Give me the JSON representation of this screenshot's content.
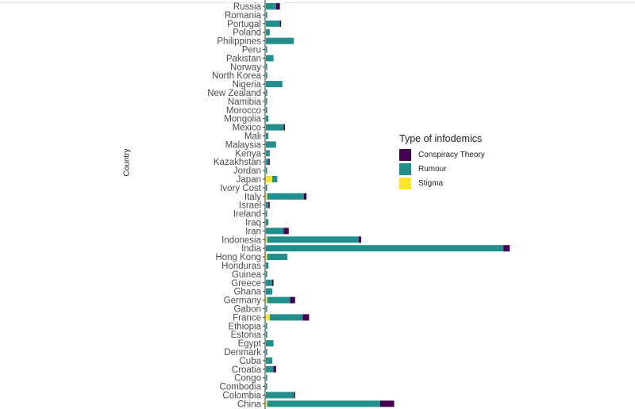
{
  "chart_data": {
    "type": "bar",
    "orientation": "horizontal",
    "stacked": true,
    "ylabel": "Country",
    "xlabel": "",
    "legend_title": "Type of infodemics",
    "legend_position": "right",
    "colors": {
      "Conspiracy Theory": "#440154",
      "Rumour": "#21908C",
      "Stigma": "#FDE725"
    },
    "categories": [
      "Russia",
      "Romania",
      "Portugal",
      "Poland",
      "Philippines",
      "Peru",
      "Pakistan",
      "Norway",
      "North Korea",
      "Nigeria",
      "New Zealand",
      "Namibia",
      "Morocco",
      "Mongolia",
      "Mexico",
      "Mali",
      "Malaysia",
      "Kenya",
      "Kazakhstan",
      "Jordan",
      "Japan",
      "Ivory Cost",
      "Italy",
      "Israel",
      "Ireland",
      "Iraq",
      "Iran",
      "Indonesia",
      "India",
      "Hong Kong",
      "Honduras",
      "Guinea",
      "Greece",
      "Ghana",
      "Germany",
      "Gabon",
      "France",
      "Ethiopia",
      "Estonia",
      "Egypt",
      "Denmark",
      "Cuba",
      "Croatia",
      "Congo",
      "Combodia",
      "Colombia",
      "China"
    ],
    "series": [
      {
        "name": "Stigma",
        "values": [
          0,
          0,
          0,
          0,
          0,
          0,
          0,
          0,
          0,
          0,
          0,
          0,
          0,
          0,
          0,
          0,
          0,
          0,
          0,
          0,
          5,
          0,
          1,
          0,
          0,
          0,
          0,
          1,
          0,
          1,
          0,
          0,
          0,
          0,
          1,
          0,
          3,
          0,
          0,
          0,
          0,
          0,
          0,
          0,
          0,
          0,
          1
        ]
      },
      {
        "name": "Rumour",
        "values": [
          8,
          1,
          11,
          3,
          22,
          1,
          6,
          1,
          1,
          13,
          1,
          1,
          1,
          2,
          14,
          2,
          8,
          3,
          2,
          1,
          4,
          1,
          29,
          2,
          1,
          2,
          14,
          72,
          187,
          16,
          2,
          1,
          5,
          5,
          18,
          1,
          26,
          1,
          1,
          6,
          1,
          5,
          6,
          1,
          1,
          22,
          89
        ]
      },
      {
        "name": "Conspiracy Theory",
        "values": [
          3,
          0,
          1,
          0,
          0,
          0,
          0,
          0,
          0,
          0,
          0,
          0,
          0,
          0,
          1,
          0,
          0,
          0,
          1,
          0,
          0,
          0,
          2,
          1,
          0,
          0,
          4,
          2,
          5,
          0,
          0,
          0,
          1,
          0,
          4,
          0,
          5,
          0,
          0,
          0,
          0,
          0,
          2,
          0,
          0,
          1,
          11
        ]
      }
    ]
  }
}
